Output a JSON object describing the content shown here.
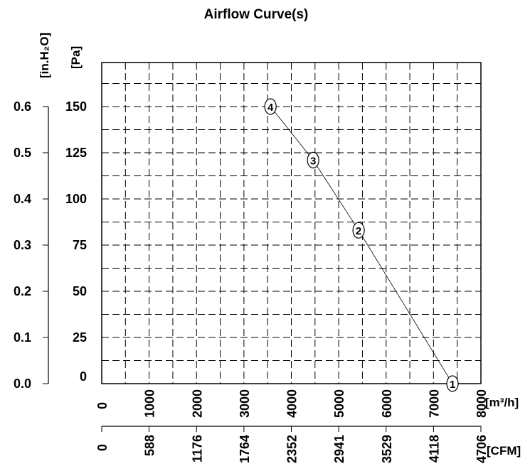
{
  "chart_data": {
    "type": "line",
    "title": "Airflow Curve(s)",
    "xlabel": "[m³/h]",
    "xlabel_secondary": "[CFM]",
    "ylabel": "[Pa]",
    "ylabel_secondary": "[in.H₂O]",
    "xlim": [
      0,
      8000
    ],
    "ylim": [
      0,
      177
    ],
    "x_ticks": [
      "0",
      "1000",
      "2000",
      "3000",
      "4000",
      "5000",
      "6000",
      "7000",
      "8000"
    ],
    "x_ticks_cfm": [
      "0",
      "588",
      "1176",
      "1764",
      "2352",
      "2941",
      "3529",
      "4118",
      "4706"
    ],
    "y_ticks": [
      "0",
      "25",
      "50",
      "75",
      "100",
      "125",
      "150"
    ],
    "y_ticks_inh2o": [
      "0.0",
      "0.1",
      "0.2",
      "0.3",
      "0.4",
      "0.5",
      "0.6"
    ],
    "grid": true,
    "series": [
      {
        "name": "Airflow curve",
        "points": [
          {
            "label": "1",
            "x": 7400,
            "y": 0
          },
          {
            "label": "2",
            "x": 5420,
            "y": 83
          },
          {
            "label": "3",
            "x": 4460,
            "y": 121
          },
          {
            "label": "4",
            "x": 3560,
            "y": 150
          }
        ]
      }
    ]
  }
}
